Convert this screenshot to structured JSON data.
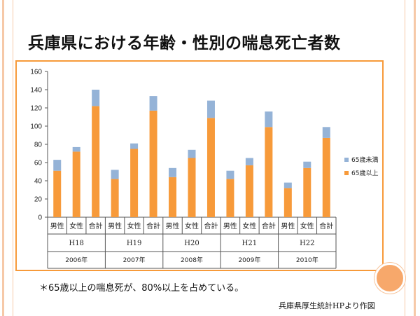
{
  "slide": {
    "title": "兵庫県における年齢・性別の喘息死亡者数",
    "note": "＊65歳以上の喘息死が、80%以上を占めている。",
    "source": "兵庫県厚生統計HPより作図"
  },
  "colors": {
    "under65": "#95b3d7",
    "over65": "#f79a3a",
    "frame": "#f79a3a",
    "accent_circle": "#f7a86b",
    "rule": "#f6c9a8"
  },
  "chart_data": {
    "type": "bar",
    "stacked": true,
    "ylim": [
      0,
      160
    ],
    "yticks": [
      0,
      20,
      40,
      60,
      80,
      100,
      120,
      140,
      160
    ],
    "grid": false,
    "legend_position": "right",
    "categories": [
      "男性",
      "女性",
      "合計",
      "男性",
      "女性",
      "合計",
      "男性",
      "女性",
      "合計",
      "男性",
      "女性",
      "合計",
      "男性",
      "女性",
      "合計"
    ],
    "groups": [
      {
        "era": "H18",
        "year": "2006年"
      },
      {
        "era": "H19",
        "year": "2007年"
      },
      {
        "era": "H20",
        "year": "2008年"
      },
      {
        "era": "H21",
        "year": "2009年"
      },
      {
        "era": "H22",
        "year": "2010年"
      }
    ],
    "series": [
      {
        "name": "65歳以上",
        "values": [
          51,
          72,
          122,
          42,
          75,
          117,
          44,
          65,
          109,
          42,
          57,
          99,
          32,
          54,
          87
        ]
      },
      {
        "name": "65歳未満",
        "values": [
          12,
          5,
          18,
          10,
          6,
          16,
          10,
          9,
          19,
          9,
          8,
          17,
          6,
          7,
          12
        ]
      }
    ]
  }
}
